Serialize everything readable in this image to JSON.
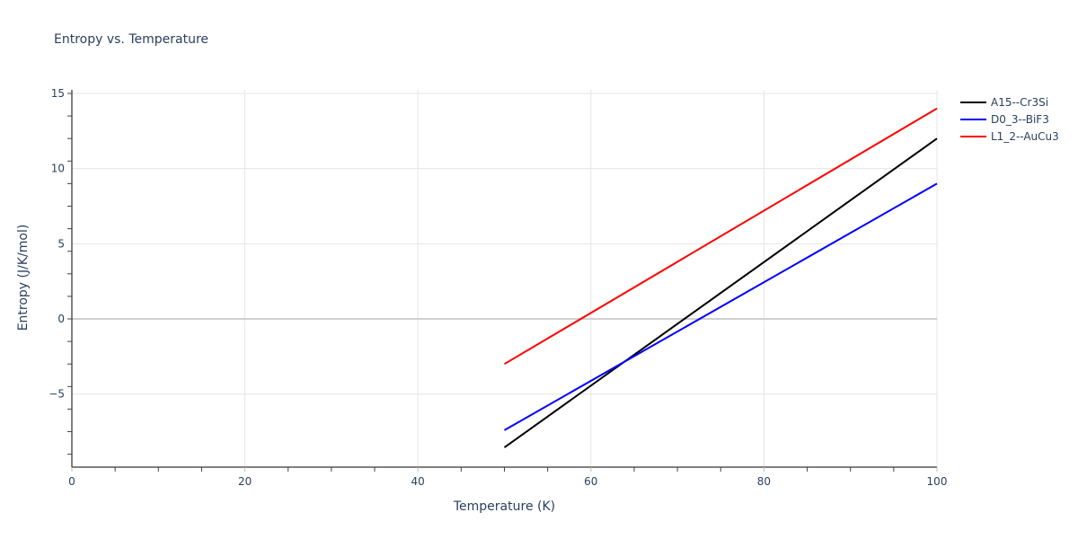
{
  "chart_data": {
    "type": "line",
    "title": "Entropy vs. Temperature",
    "xlabel": "Temperature (K)",
    "ylabel": "Entropy (J/K/mol)",
    "xlim": [
      0,
      100
    ],
    "ylim": [
      -9.86,
      15.2
    ],
    "x_ticks": [
      0,
      20,
      40,
      60,
      80,
      100
    ],
    "y_ticks": [
      -5,
      0,
      5,
      10,
      15
    ],
    "y_tick_labels": [
      "−5",
      "0",
      "5",
      "10",
      "15"
    ],
    "grid": true,
    "legend_position": "right-top",
    "series": [
      {
        "name": "A15--Cr3Si",
        "color": "#000000",
        "x": [
          50,
          100
        ],
        "y": [
          -8.55,
          12.0
        ]
      },
      {
        "name": "D0_3--BiF3",
        "color": "#0000ff",
        "x": [
          50,
          100
        ],
        "y": [
          -7.4,
          9.0
        ]
      },
      {
        "name": "L1_2--AuCu3",
        "color": "#ff0000",
        "x": [
          50,
          100
        ],
        "y": [
          -3.0,
          14.0
        ]
      }
    ]
  }
}
